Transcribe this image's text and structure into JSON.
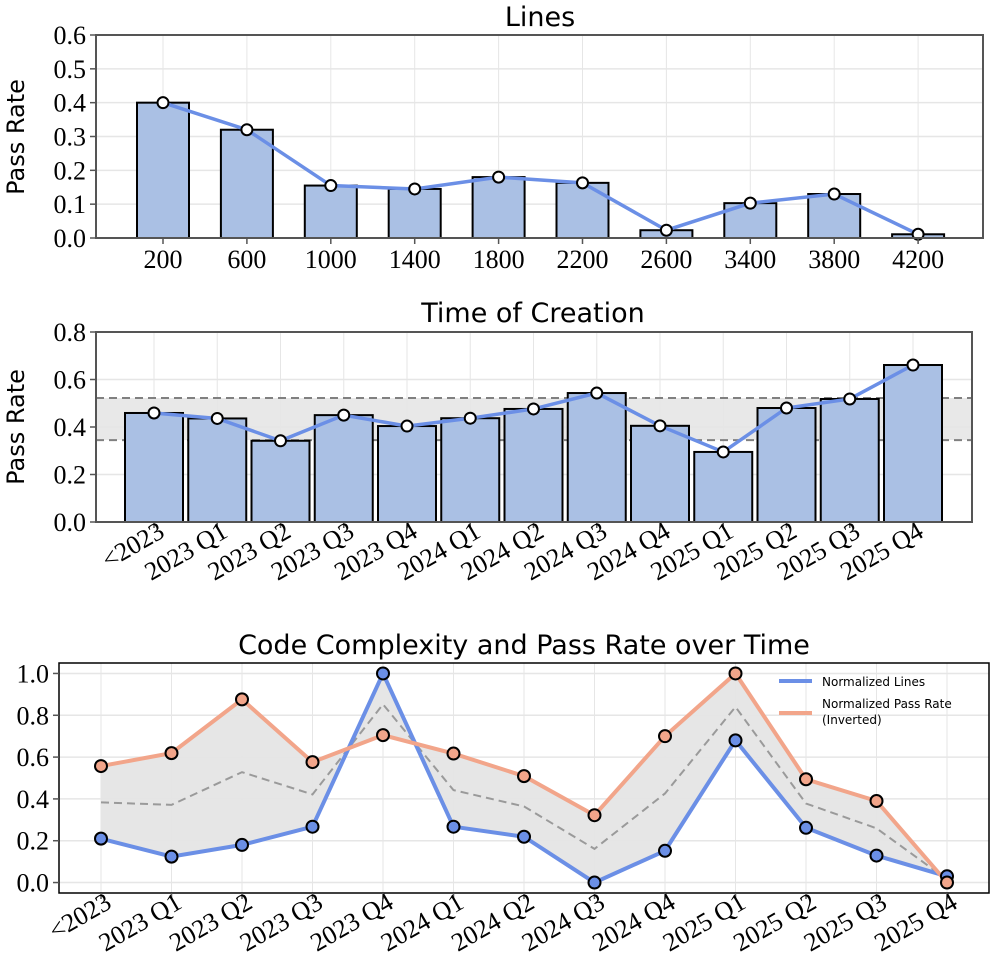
{
  "colors": {
    "bar_fill": "#aac0e4",
    "bar_edge": "#000000",
    "line_blue": "#6b8fe6",
    "line_orange": "#f2a58a",
    "band_fill": "#e5e5e5",
    "dashed": "#808080",
    "grid": "#e6e6e6"
  },
  "chart_data": [
    {
      "type": "bar",
      "title": "Lines",
      "xlabel": "",
      "ylabel": "Pass Rate",
      "categories": [
        "200",
        "600",
        "1000",
        "1400",
        "1800",
        "2200",
        "2600",
        "3400",
        "3800",
        "4200"
      ],
      "values": [
        0.4,
        0.32,
        0.155,
        0.145,
        0.18,
        0.163,
        0.023,
        0.103,
        0.13,
        0.011
      ],
      "overlay_line": true,
      "ylim": [
        0,
        0.6
      ],
      "yticks": [
        "0.0",
        "0.1",
        "0.2",
        "0.3",
        "0.4",
        "0.5",
        "0.6"
      ],
      "grid": true
    },
    {
      "type": "bar",
      "title": "Time of Creation",
      "xlabel": "",
      "ylabel": "Pass Rate",
      "categories": [
        "<2023",
        "2023 Q1",
        "2023 Q2",
        "2023 Q3",
        "2023 Q4",
        "2024 Q1",
        "2024 Q2",
        "2024 Q3",
        "2024 Q4",
        "2025 Q1",
        "2025 Q2",
        "2025 Q3",
        "2025 Q4"
      ],
      "values": [
        0.459,
        0.436,
        0.342,
        0.45,
        0.404,
        0.437,
        0.476,
        0.543,
        0.405,
        0.295,
        0.48,
        0.518,
        0.661
      ],
      "overlay_line": true,
      "band": [
        0.345,
        0.522
      ],
      "ylim": [
        0,
        0.8
      ],
      "yticks": [
        "0.0",
        "0.2",
        "0.4",
        "0.6",
        "0.8"
      ],
      "grid": true
    },
    {
      "type": "line",
      "title": "Code Complexity and Pass Rate over Time",
      "xlabel": "",
      "ylabel": "",
      "categories": [
        "<2023",
        "2023 Q1",
        "2023 Q2",
        "2023 Q3",
        "2023 Q4",
        "2024 Q1",
        "2024 Q2",
        "2024 Q3",
        "2024 Q4",
        "2025 Q1",
        "2025 Q2",
        "2025 Q3",
        "2025 Q4"
      ],
      "series": [
        {
          "name": "Normalized Lines",
          "values": [
            0.21,
            0.124,
            0.18,
            0.267,
            1.0,
            0.267,
            0.219,
            0.0,
            0.152,
            0.68,
            0.262,
            0.129,
            0.03
          ]
        },
        {
          "name": "Normalized Pass Rate\n(Inverted)",
          "values": [
            0.557,
            0.619,
            0.876,
            0.576,
            0.705,
            0.617,
            0.509,
            0.322,
            0.7,
            1.0,
            0.494,
            0.39,
            0.0
          ]
        }
      ],
      "mean_line": true,
      "fill_between": true,
      "ylim": [
        -0.05,
        1.05
      ],
      "yticks": [
        "0.0",
        "0.2",
        "0.4",
        "0.6",
        "0.8",
        "1.0"
      ],
      "legend": "top-right",
      "legend_labels": [
        "Normalized Lines",
        "Normalized Pass Rate",
        "(Inverted)"
      ],
      "grid": true
    }
  ]
}
